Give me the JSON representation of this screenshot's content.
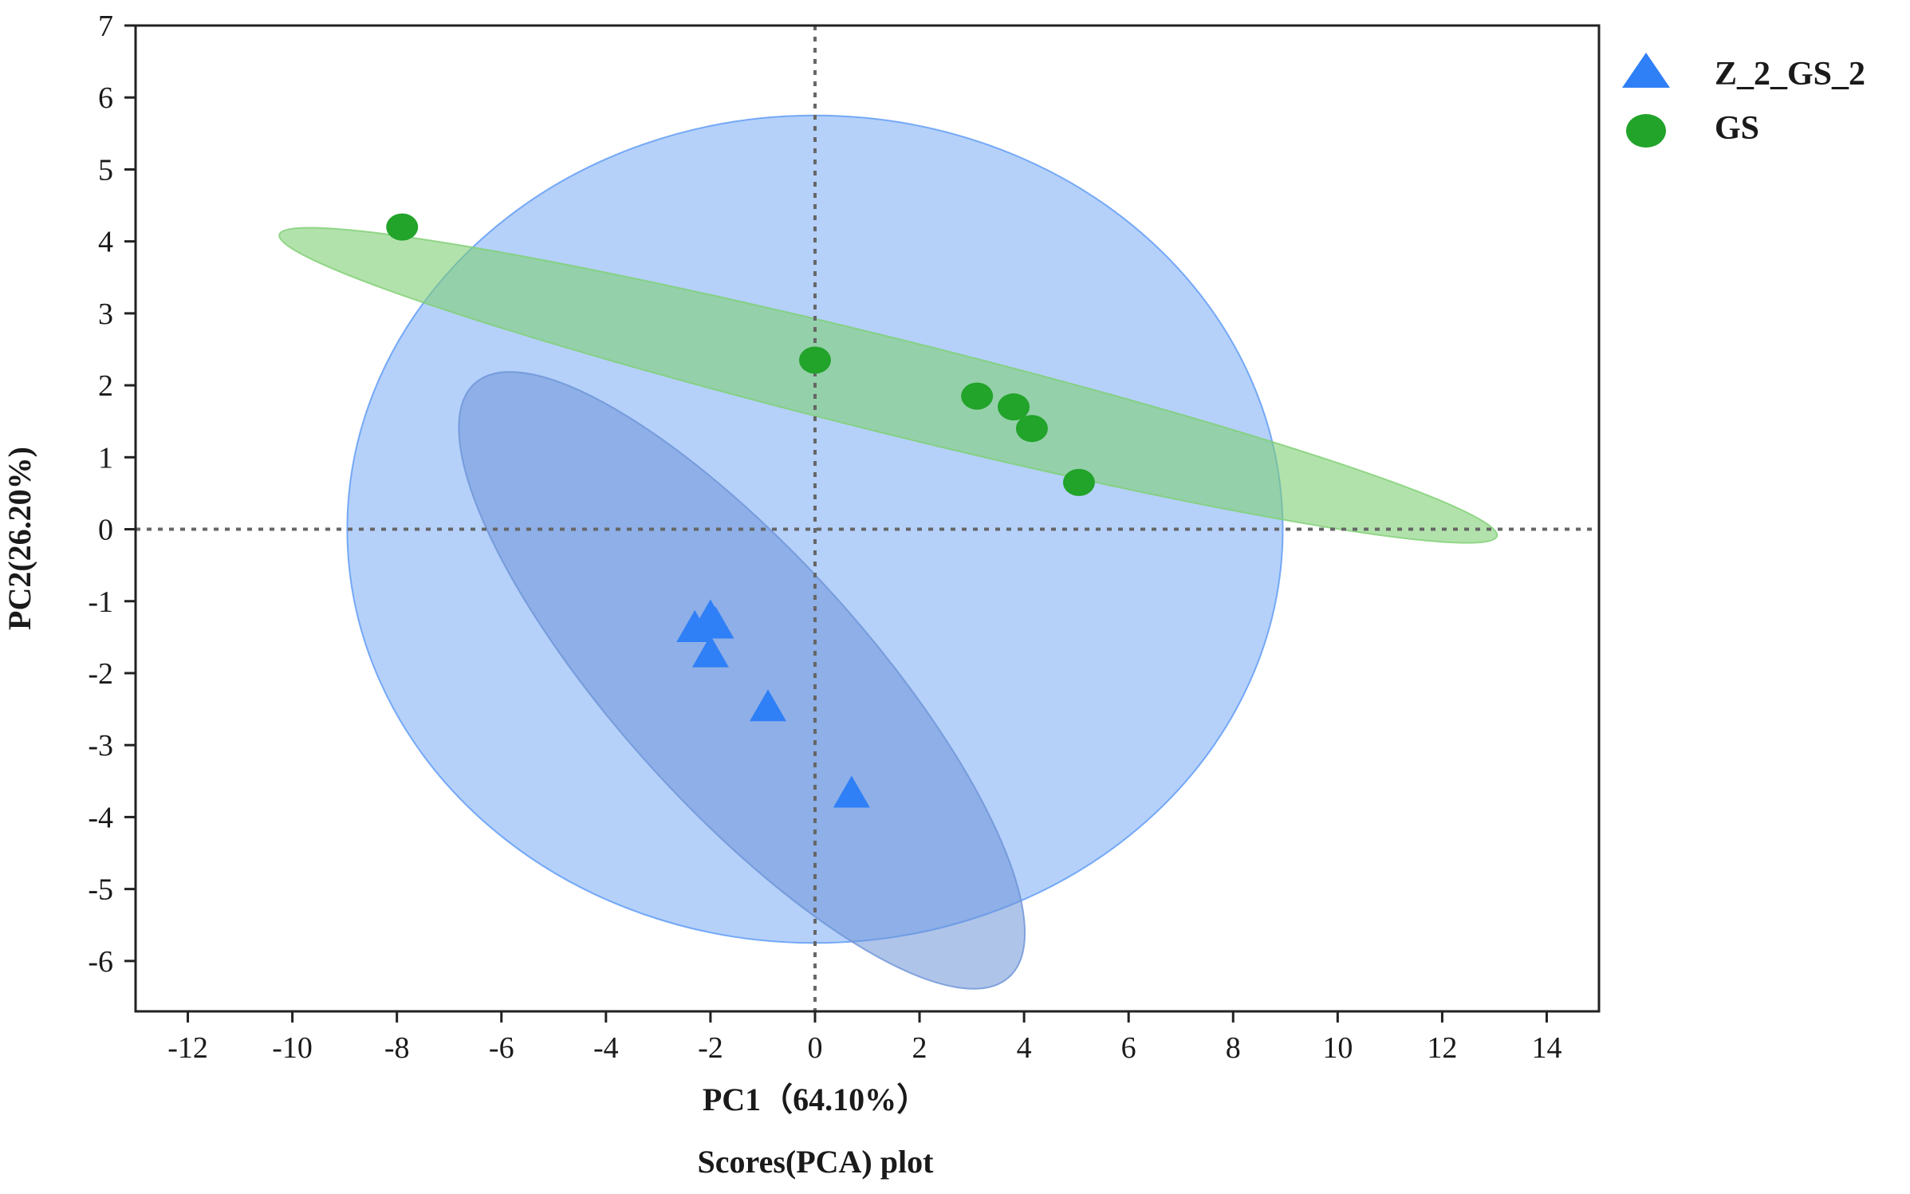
{
  "chart_data": {
    "type": "scatter",
    "title": "Scores(PCA) plot",
    "xlabel": "PC1（64.10%）",
    "ylabel": "PC2(26.20%)",
    "xlim": [
      -13,
      15
    ],
    "ylim": [
      -6.7,
      7
    ],
    "xticks": [
      -12,
      -10,
      -8,
      -6,
      -4,
      -2,
      0,
      2,
      4,
      6,
      8,
      10,
      12,
      14
    ],
    "yticks": [
      -6,
      -5,
      -4,
      -3,
      -2,
      -1,
      0,
      1,
      2,
      3,
      4,
      5,
      6,
      7
    ],
    "reference_lines": {
      "x": 0,
      "y": 0,
      "style": "dotted"
    },
    "legend_position": "top-right",
    "series": [
      {
        "name": "Z_2_GS_2",
        "marker": "triangle",
        "color": "#2f7ff7",
        "points": [
          {
            "x": -2.0,
            "y": -1.25
          },
          {
            "x": -2.3,
            "y": -1.4
          },
          {
            "x": -1.9,
            "y": -1.35
          },
          {
            "x": -2.0,
            "y": -1.75
          },
          {
            "x": -0.9,
            "y": -2.5
          },
          {
            "x": 0.7,
            "y": -3.7
          }
        ],
        "ellipse": {
          "cx": -1.4,
          "cy": -2.1,
          "rx": 2.4,
          "ry": 5.55,
          "angle": 42,
          "fill": "#6d93d7",
          "opacity": 0.55
        }
      },
      {
        "name": "GS",
        "marker": "circle",
        "color": "#22a32a",
        "points": [
          {
            "x": -7.9,
            "y": 4.2
          },
          {
            "x": 0.0,
            "y": 2.35
          },
          {
            "x": 3.1,
            "y": 1.85
          },
          {
            "x": 3.8,
            "y": 1.7
          },
          {
            "x": 4.15,
            "y": 1.4
          },
          {
            "x": 5.05,
            "y": 0.65
          }
        ],
        "ellipse": {
          "cx": 1.4,
          "cy": 2.0,
          "rx": 12.0,
          "ry": 0.66,
          "angle": -13.9,
          "fill": "#7fcf74",
          "opacity": 0.6
        }
      }
    ],
    "overall_ellipse": {
      "cx": 0.0,
      "cy": 0.0,
      "rx": 8.95,
      "ry": 5.75,
      "angle": 0,
      "fill": "#5b98f5",
      "opacity": 0.45
    }
  }
}
